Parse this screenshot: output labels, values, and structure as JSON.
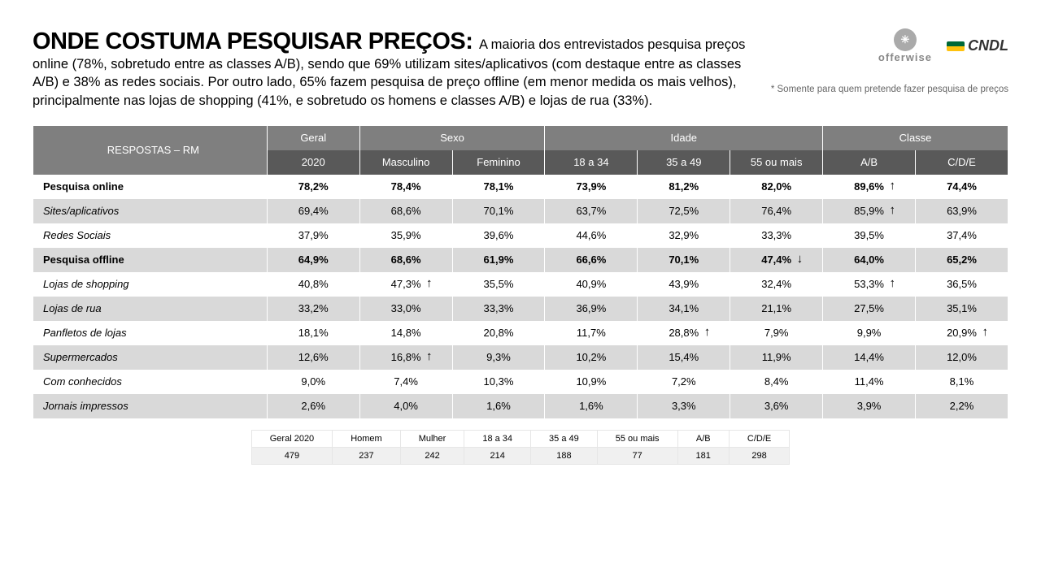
{
  "title": "ONDE COSTUMA PESQUISAR PREÇOS: ",
  "intro": "A maioria dos entrevistados pesquisa preços online (78%, sobretudo entre as classes A/B), sendo que 69% utilizam sites/aplicativos (com destaque entre as classes A/B) e 38% as redes sociais. Por outro lado, 65% fazem pesquisa de preço offline (em menor medida os mais velhos), principalmente nas lojas de shopping (41%, e sobretudo os homens e classes A/B) e lojas de rua (33%).",
  "footnote": "* Somente para quem pretende fazer pesquisa de preços",
  "logos": {
    "offerwise": "offerwise",
    "cndl": "CNDL"
  },
  "table": {
    "corner": "RESPOSTAS – RM",
    "groupHeaders": [
      {
        "label": "Geral",
        "span": 1
      },
      {
        "label": "Sexo",
        "span": 2
      },
      {
        "label": "Idade",
        "span": 3
      },
      {
        "label": "Classe",
        "span": 2
      }
    ],
    "subHeaders": [
      "2020",
      "Masculino",
      "Feminino",
      "18 a 34",
      "35 a 49",
      "55 ou mais",
      "A/B",
      "C/D/E"
    ],
    "rows": [
      {
        "label": "Pesquisa online",
        "bold": true,
        "italic": false,
        "cells": [
          {
            "v": "78,2%"
          },
          {
            "v": "78,4%"
          },
          {
            "v": "78,1%"
          },
          {
            "v": "73,9%"
          },
          {
            "v": "81,2%"
          },
          {
            "v": "82,0%"
          },
          {
            "v": "89,6%",
            "arrow": "up"
          },
          {
            "v": "74,4%"
          }
        ]
      },
      {
        "label": "Sites/aplicativos",
        "italic": true,
        "cells": [
          {
            "v": "69,4%"
          },
          {
            "v": "68,6%"
          },
          {
            "v": "70,1%"
          },
          {
            "v": "63,7%"
          },
          {
            "v": "72,5%"
          },
          {
            "v": "76,4%"
          },
          {
            "v": "85,9%",
            "arrow": "up"
          },
          {
            "v": "63,9%"
          }
        ]
      },
      {
        "label": "Redes Sociais",
        "italic": true,
        "cells": [
          {
            "v": "37,9%"
          },
          {
            "v": "35,9%"
          },
          {
            "v": "39,6%"
          },
          {
            "v": "44,6%"
          },
          {
            "v": "32,9%"
          },
          {
            "v": "33,3%"
          },
          {
            "v": "39,5%"
          },
          {
            "v": "37,4%"
          }
        ]
      },
      {
        "label": "Pesquisa offline",
        "bold": true,
        "cells": [
          {
            "v": "64,9%"
          },
          {
            "v": "68,6%"
          },
          {
            "v": "61,9%"
          },
          {
            "v": "66,6%"
          },
          {
            "v": "70,1%"
          },
          {
            "v": "47,4%",
            "arrow": "down"
          },
          {
            "v": "64,0%"
          },
          {
            "v": "65,2%"
          }
        ]
      },
      {
        "label": "Lojas de shopping",
        "italic": true,
        "cells": [
          {
            "v": "40,8%"
          },
          {
            "v": "47,3%",
            "arrow": "up"
          },
          {
            "v": "35,5%"
          },
          {
            "v": "40,9%"
          },
          {
            "v": "43,9%"
          },
          {
            "v": "32,4%"
          },
          {
            "v": "53,3%",
            "arrow": "up"
          },
          {
            "v": "36,5%"
          }
        ]
      },
      {
        "label": "Lojas de rua",
        "italic": true,
        "cells": [
          {
            "v": "33,2%"
          },
          {
            "v": "33,0%"
          },
          {
            "v": "33,3%"
          },
          {
            "v": "36,9%"
          },
          {
            "v": "34,1%"
          },
          {
            "v": "21,1%"
          },
          {
            "v": "27,5%"
          },
          {
            "v": "35,1%"
          }
        ]
      },
      {
        "label": "Panfletos de lojas",
        "italic": true,
        "cells": [
          {
            "v": "18,1%"
          },
          {
            "v": "14,8%"
          },
          {
            "v": "20,8%"
          },
          {
            "v": "11,7%"
          },
          {
            "v": "28,8%",
            "arrow": "up"
          },
          {
            "v": "7,9%"
          },
          {
            "v": "9,9%"
          },
          {
            "v": "20,9%",
            "arrow": "up"
          }
        ]
      },
      {
        "label": "Supermercados",
        "italic": true,
        "cells": [
          {
            "v": "12,6%"
          },
          {
            "v": "16,8%",
            "arrow": "up"
          },
          {
            "v": "9,3%"
          },
          {
            "v": "10,2%"
          },
          {
            "v": "15,4%"
          },
          {
            "v": "11,9%"
          },
          {
            "v": "14,4%"
          },
          {
            "v": "12,0%"
          }
        ]
      },
      {
        "label": "Com conhecidos",
        "italic": true,
        "cells": [
          {
            "v": "9,0%"
          },
          {
            "v": "7,4%"
          },
          {
            "v": "10,3%"
          },
          {
            "v": "10,9%"
          },
          {
            "v": "7,2%"
          },
          {
            "v": "8,4%"
          },
          {
            "v": "11,4%"
          },
          {
            "v": "8,1%"
          }
        ]
      },
      {
        "label": "Jornais impressos",
        "italic": true,
        "cells": [
          {
            "v": "2,6%"
          },
          {
            "v": "4,0%"
          },
          {
            "v": "1,6%"
          },
          {
            "v": "1,6%"
          },
          {
            "v": "3,3%"
          },
          {
            "v": "3,6%"
          },
          {
            "v": "3,9%"
          },
          {
            "v": "2,2%"
          }
        ]
      }
    ]
  },
  "baseTable": {
    "headers": [
      "Geral 2020",
      "Homem",
      "Mulher",
      "18 a 34",
      "35 a 49",
      "55 ou mais",
      "A/B",
      "C/D/E"
    ],
    "values": [
      "479",
      "237",
      "242",
      "214",
      "188",
      "77",
      "181",
      "298"
    ]
  }
}
